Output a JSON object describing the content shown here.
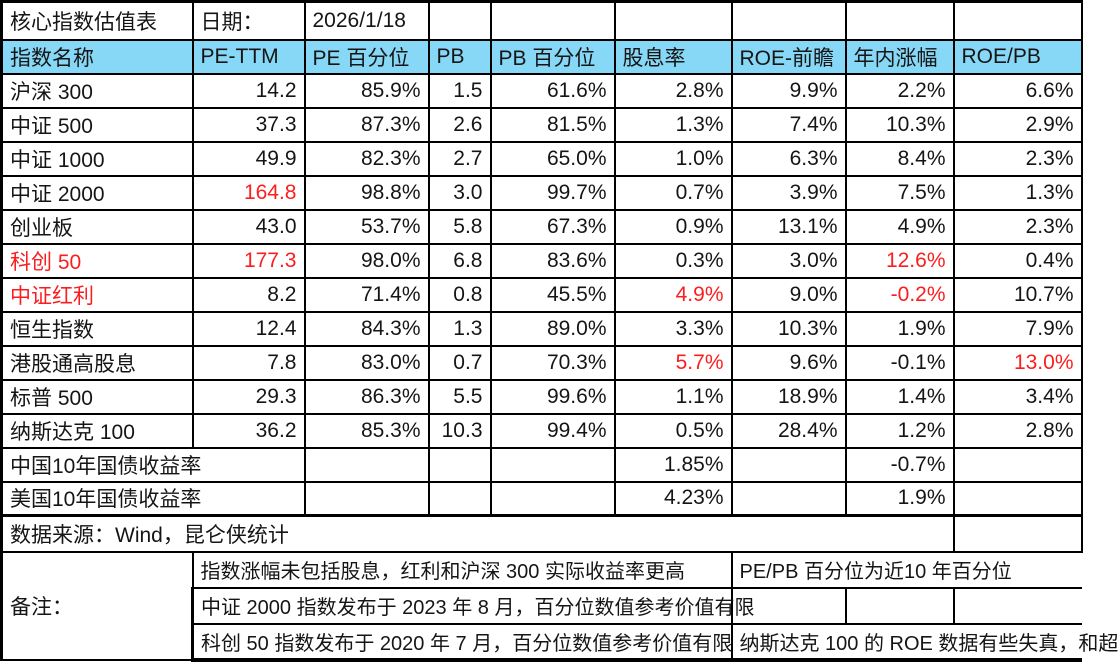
{
  "title": "核心指数估值表",
  "date": {
    "label": "日期：",
    "value": "2026/1/18"
  },
  "colors": {
    "header_bg": "#87d8f6",
    "red": "#fb1e1e",
    "border": "#000000"
  },
  "table": {
    "columns": [
      "指数名称",
      "PE-TTM",
      "PE 百分位",
      "PB",
      "PB 百分位",
      "股息率",
      "ROE-前瞻",
      "年内涨幅",
      "ROE/PB"
    ],
    "rows": [
      {
        "name": "沪深 300",
        "name_red": false,
        "values": [
          "14.2",
          "85.9%",
          "1.5",
          "61.6%",
          "2.8%",
          "9.9%",
          "2.2%",
          "6.6%"
        ],
        "red": []
      },
      {
        "name": "中证 500",
        "name_red": false,
        "values": [
          "37.3",
          "87.3%",
          "2.6",
          "81.5%",
          "1.3%",
          "7.4%",
          "10.3%",
          "2.9%"
        ],
        "red": []
      },
      {
        "name": "中证 1000",
        "name_red": false,
        "values": [
          "49.9",
          "82.3%",
          "2.7",
          "65.0%",
          "1.0%",
          "6.3%",
          "8.4%",
          "2.3%"
        ],
        "red": []
      },
      {
        "name": "中证 2000",
        "name_red": false,
        "values": [
          "164.8",
          "98.8%",
          "3.0",
          "99.7%",
          "0.7%",
          "3.9%",
          "7.5%",
          "1.3%"
        ],
        "red": [
          0
        ]
      },
      {
        "name": "创业板",
        "name_red": false,
        "values": [
          "43.0",
          "53.7%",
          "5.8",
          "67.3%",
          "0.9%",
          "13.1%",
          "4.9%",
          "2.3%"
        ],
        "red": []
      },
      {
        "name": "科创 50",
        "name_red": true,
        "values": [
          "177.3",
          "98.0%",
          "6.8",
          "83.6%",
          "0.3%",
          "3.0%",
          "12.6%",
          "0.4%"
        ],
        "red": [
          0,
          6
        ]
      },
      {
        "name": "中证红利",
        "name_red": true,
        "values": [
          "8.2",
          "71.4%",
          "0.8",
          "45.5%",
          "4.9%",
          "9.0%",
          "-0.2%",
          "10.7%"
        ],
        "red": [
          4,
          6
        ]
      },
      {
        "name": "恒生指数",
        "name_red": false,
        "values": [
          "12.4",
          "84.3%",
          "1.3",
          "89.0%",
          "3.3%",
          "10.3%",
          "1.9%",
          "7.9%"
        ],
        "red": []
      },
      {
        "name": "港股通高股息",
        "name_red": false,
        "values": [
          "7.8",
          "83.0%",
          "0.7",
          "70.3%",
          "5.7%",
          "9.6%",
          "-0.1%",
          "13.0%"
        ],
        "red": [
          4,
          7
        ]
      },
      {
        "name": "标普 500",
        "name_red": false,
        "values": [
          "29.3",
          "86.3%",
          "5.5",
          "99.6%",
          "1.1%",
          "18.9%",
          "1.4%",
          "3.4%"
        ],
        "red": []
      },
      {
        "name": "纳斯达克 100",
        "name_red": false,
        "values": [
          "36.2",
          "85.3%",
          "10.3",
          "99.4%",
          "0.5%",
          "28.4%",
          "1.2%",
          "2.8%"
        ],
        "red": []
      }
    ],
    "bond_rows": [
      {
        "name": "中国10年国债收益率",
        "yield": "1.85%",
        "ytd": "-0.7%"
      },
      {
        "name": "美国10年国债收益率",
        "yield": "4.23%",
        "ytd": "1.9%"
      }
    ]
  },
  "source": "数据来源：Wind，昆仑侠统计",
  "notes": {
    "label": "备注：",
    "left": [
      "指数涨幅未包括股息，红利和沪深 300 实际收益率更高",
      "中证 2000 指数发布于 2023 年 8 月，百分位数值参考价值有限",
      "科创 50 指数发布于 2020 年 7 月，百分位数值参考价值有限"
    ],
    "right1": "PE/PB 百分位为近10 年百分位",
    "right3": "纳斯达克 100 的 ROE 数据有些失真，和超"
  }
}
